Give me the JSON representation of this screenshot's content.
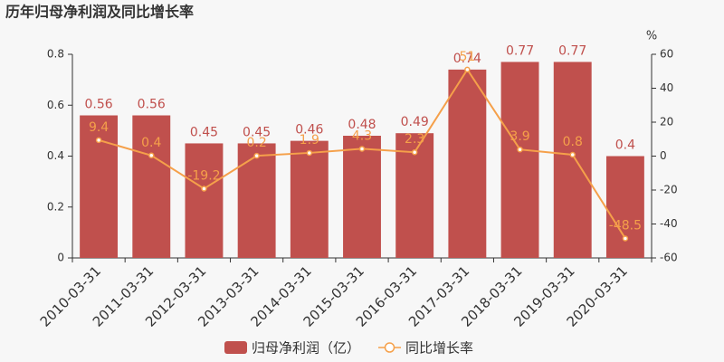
{
  "chart_data": {
    "type": "bar",
    "title": "历年归母净利润及同比增长率",
    "categories": [
      "2010-03-31",
      "2011-03-31",
      "2012-03-31",
      "2013-03-31",
      "2014-03-31",
      "2015-03-31",
      "2016-03-31",
      "2017-03-31",
      "2018-03-31",
      "2019-03-31",
      "2020-03-31"
    ],
    "series": [
      {
        "name": "归母净利润（亿）",
        "type": "bar",
        "color": "#c0504d",
        "values": [
          0.56,
          0.56,
          0.45,
          0.45,
          0.46,
          0.48,
          0.49,
          0.74,
          0.77,
          0.77,
          0.4
        ]
      },
      {
        "name": "同比增长率",
        "type": "line",
        "axis": "y2",
        "color": "#f5a04a",
        "values": [
          9.4,
          0.4,
          -19.2,
          0.2,
          1.9,
          4.3,
          2.3,
          51,
          3.9,
          0.8,
          -48.5
        ]
      }
    ],
    "ylim": [
      0,
      0.8
    ],
    "yticks": [
      0,
      0.2,
      0.4,
      0.6,
      0.8
    ],
    "y2lim": [
      -60,
      60
    ],
    "y2ticks": [
      -60,
      -40,
      -20,
      0,
      20,
      40,
      60
    ],
    "y2_label": "%",
    "grid": false
  }
}
